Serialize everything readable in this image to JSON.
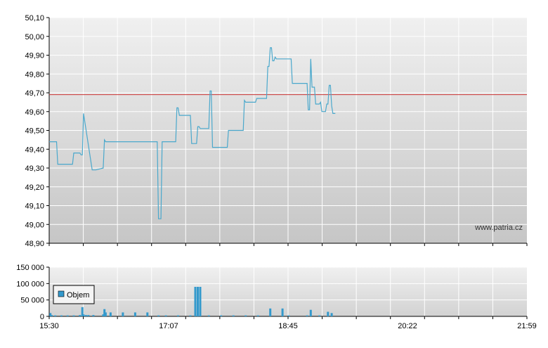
{
  "chart_data": [
    {
      "type": "line",
      "title": "",
      "xlabel": "",
      "ylabel": "",
      "ylim": [
        48.9,
        50.1
      ],
      "y_ticks": [
        "48,90",
        "49,00",
        "49,10",
        "49,20",
        "49,30",
        "49,40",
        "49,50",
        "49,60",
        "49,70",
        "49,80",
        "49,90",
        "50,00",
        "50,10"
      ],
      "grid": true,
      "reference_line": {
        "value": 49.69,
        "color": "#cc3333"
      },
      "series": [
        {
          "color": "#4aa8cc",
          "points": [
            [
              "15:30",
              49.44
            ],
            [
              "15:36",
              49.44
            ],
            [
              "15:37",
              49.32
            ],
            [
              "15:49",
              49.32
            ],
            [
              "15:50",
              49.38
            ],
            [
              "15:55",
              49.38
            ],
            [
              "15:56",
              49.37
            ],
            [
              "15:57",
              49.37
            ],
            [
              "15:58",
              49.59
            ],
            [
              "16:05",
              49.29
            ],
            [
              "16:08",
              49.29
            ],
            [
              "16:14",
              49.3
            ],
            [
              "16:15",
              49.45
            ],
            [
              "16:16",
              49.44
            ],
            [
              "16:58",
              49.44
            ],
            [
              "16:59",
              49.03
            ],
            [
              "17:00",
              49.03
            ],
            [
              "17:01",
              49.03
            ],
            [
              "17:02",
              49.44
            ],
            [
              "17:13",
              49.44
            ],
            [
              "17:14",
              49.62
            ],
            [
              "17:15",
              49.62
            ],
            [
              "17:16",
              49.58
            ],
            [
              "17:24",
              49.58
            ],
            [
              "17:25",
              49.58
            ],
            [
              "17:26",
              49.43
            ],
            [
              "17:30",
              49.43
            ],
            [
              "17:31",
              49.52
            ],
            [
              "17:32",
              49.52
            ],
            [
              "17:33",
              49.51
            ],
            [
              "17:40",
              49.51
            ],
            [
              "17:41",
              49.71
            ],
            [
              "17:42",
              49.71
            ],
            [
              "17:43",
              49.41
            ],
            [
              "17:55",
              49.41
            ],
            [
              "17:56",
              49.5
            ],
            [
              "18:08",
              49.5
            ],
            [
              "18:09",
              49.66
            ],
            [
              "18:10",
              49.65
            ],
            [
              "18:18",
              49.65
            ],
            [
              "18:19",
              49.67
            ],
            [
              "18:27",
              49.67
            ],
            [
              "18:28",
              49.84
            ],
            [
              "18:29",
              49.84
            ],
            [
              "18:30",
              49.94
            ],
            [
              "18:31",
              49.94
            ],
            [
              "18:32",
              49.87
            ],
            [
              "18:33",
              49.87
            ],
            [
              "18:34",
              49.89
            ],
            [
              "18:35",
              49.88
            ],
            [
              "18:47",
              49.88
            ],
            [
              "18:48",
              49.75
            ],
            [
              "19:00",
              49.75
            ],
            [
              "19:01",
              49.61
            ],
            [
              "19:02",
              49.61
            ],
            [
              "19:03",
              49.88
            ],
            [
              "19:04",
              49.73
            ],
            [
              "19:06",
              49.73
            ],
            [
              "19:07",
              49.64
            ],
            [
              "19:10",
              49.64
            ],
            [
              "19:11",
              49.65
            ],
            [
              "19:12",
              49.6
            ],
            [
              "19:15",
              49.6
            ],
            [
              "19:16",
              49.64
            ],
            [
              "19:17",
              49.64
            ],
            [
              "19:18",
              49.74
            ],
            [
              "19:19",
              49.74
            ],
            [
              "19:20",
              49.63
            ],
            [
              "19:21",
              49.59
            ],
            [
              "19:23",
              49.59
            ]
          ]
        }
      ],
      "x_ticks": [
        "15:30",
        "17:07",
        "18:45",
        "20:22",
        "21:59"
      ],
      "watermark": "www.patria.cz"
    },
    {
      "type": "bar",
      "title": "",
      "xlabel": "",
      "ylabel": "",
      "ylim": [
        0,
        150000
      ],
      "y_ticks": [
        "0",
        "50 000",
        "100 000",
        "150 000"
      ],
      "grid": true,
      "legend": {
        "label": "Objem",
        "placement": "top-left"
      },
      "series": [
        {
          "name": "Objem",
          "color": "#3399cc",
          "bars": [
            [
              "15:31",
              10000
            ],
            [
              "15:32",
              4000
            ],
            [
              "15:35",
              3000
            ],
            [
              "15:40",
              3000
            ],
            [
              "15:45",
              3000
            ],
            [
              "15:50",
              3000
            ],
            [
              "15:55",
              4000
            ],
            [
              "15:57",
              28000
            ],
            [
              "15:58",
              6000
            ],
            [
              "16:00",
              4000
            ],
            [
              "16:02",
              4000
            ],
            [
              "16:06",
              4000
            ],
            [
              "16:14",
              6000
            ],
            [
              "16:15",
              22000
            ],
            [
              "16:16",
              12000
            ],
            [
              "16:20",
              12000
            ],
            [
              "16:30",
              12000
            ],
            [
              "16:40",
              12000
            ],
            [
              "16:50",
              12000
            ],
            [
              "16:59",
              3000
            ],
            [
              "17:05",
              3000
            ],
            [
              "17:15",
              3000
            ],
            [
              "17:25",
              3000
            ],
            [
              "17:29",
              90000
            ],
            [
              "17:31",
              90000
            ],
            [
              "17:33",
              90000
            ],
            [
              "17:40",
              3000
            ],
            [
              "17:50",
              3000
            ],
            [
              "18:00",
              3000
            ],
            [
              "18:10",
              3000
            ],
            [
              "18:20",
              3000
            ],
            [
              "18:30",
              24000
            ],
            [
              "18:40",
              24000
            ],
            [
              "18:45",
              3000
            ],
            [
              "19:00",
              3000
            ],
            [
              "19:03",
              20000
            ],
            [
              "19:10",
              3000
            ],
            [
              "19:17",
              14000
            ],
            [
              "19:20",
              10000
            ]
          ]
        }
      ]
    }
  ]
}
